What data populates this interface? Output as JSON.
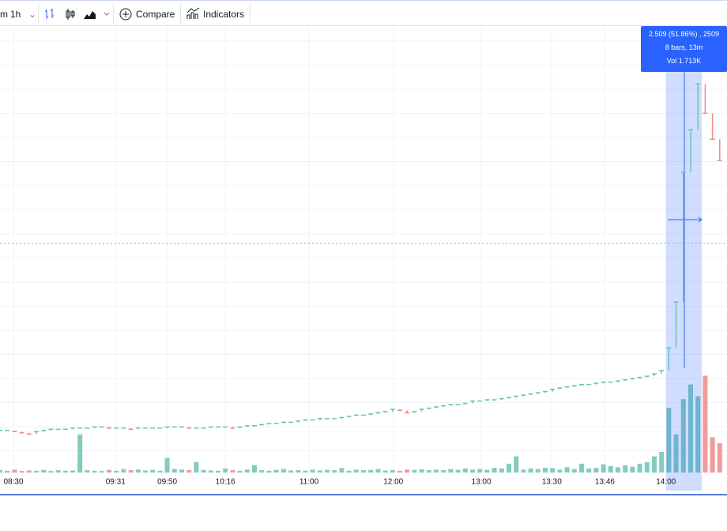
{
  "toolbar": {
    "interval_fragment": "m",
    "interval": "1h",
    "compare": "Compare",
    "indicators": "Indicators"
  },
  "chart_data": {
    "type": "ohlc",
    "xlim": [
      0,
      100
    ],
    "xticks": [
      {
        "value": 1.85,
        "label": "08:30"
      },
      {
        "value": 15.9,
        "label": "09:31"
      },
      {
        "value": 23,
        "label": "09:50"
      },
      {
        "value": 31,
        "label": "10:16"
      },
      {
        "value": 42.5,
        "label": "11:00"
      },
      {
        "value": 54.1,
        "label": "12:00"
      },
      {
        "value": 66.2,
        "label": "13:00"
      },
      {
        "value": 75.9,
        "label": "13:30"
      },
      {
        "value": 83.2,
        "label": "13:46"
      },
      {
        "value": 91.6,
        "label": "14:00"
      }
    ],
    "ylim": [
      3.94,
      7.74
    ],
    "y2lim": [
      0,
      700
    ],
    "up_color": "#6cc3b4",
    "down_color": "#ef8a8a",
    "series": [
      {
        "values": [
          4.31,
          4.31,
          4.3,
          4.29,
          4.28,
          4.3,
          4.31,
          4.32,
          4.32,
          4.32,
          4.33,
          4.33,
          4.33,
          4.34,
          4.34,
          4.33,
          4.33,
          4.33,
          4.32,
          4.33,
          4.33,
          4.33,
          4.33,
          4.34,
          4.34,
          4.34,
          4.33,
          4.33,
          4.33,
          4.34,
          4.34,
          4.34,
          4.33,
          4.34,
          4.35,
          4.35,
          4.36,
          4.37,
          4.37,
          4.38,
          4.38,
          4.39,
          4.4,
          4.4,
          4.41,
          4.41,
          4.41,
          4.42,
          4.43,
          4.44,
          4.44,
          4.45,
          4.46,
          4.47,
          4.49,
          4.48,
          4.46,
          4.47,
          4.49,
          4.5,
          4.51,
          4.52,
          4.53,
          4.53,
          4.54,
          4.56,
          4.56,
          4.57,
          4.57,
          4.58,
          4.59,
          4.6,
          4.61,
          4.62,
          4.63,
          4.64,
          4.66,
          4.67,
          4.68,
          4.69,
          4.7,
          4.7,
          4.71,
          4.72,
          4.72,
          4.73,
          4.74,
          4.75,
          4.76,
          4.77,
          4.79,
          4.82,
          5.01,
          5.4,
          6.5,
          6.86,
          7.25,
          7.0,
          6.78,
          6.6
        ]
      },
      {
        "axis": "y2",
        "values": [
          8,
          6,
          10,
          5,
          7,
          6,
          9,
          5,
          8,
          6,
          7,
          130,
          8,
          6,
          5,
          9,
          6,
          12,
          8,
          10,
          7,
          9,
          6,
          50,
          12,
          10,
          8,
          36,
          9,
          7,
          6,
          14,
          8,
          6,
          10,
          25,
          8,
          6,
          9,
          12,
          7,
          8,
          6,
          10,
          7,
          9,
          8,
          15,
          6,
          10,
          8,
          9,
          12,
          7,
          8,
          6,
          10,
          9,
          11,
          8,
          10,
          8,
          12,
          9,
          14,
          10,
          12,
          9,
          16,
          14,
          30,
          55,
          10,
          14,
          12,
          16,
          15,
          10,
          18,
          12,
          30,
          14,
          16,
          28,
          22,
          18,
          25,
          20,
          30,
          35,
          55,
          70,
          220,
          130,
          250,
          300,
          260,
          330,
          120,
          100
        ]
      }
    ]
  },
  "tooltip": {
    "line1": "2.509 (51.86%) , 2509",
    "line2": "8 bars, 13m",
    "line3": "Vol 1.713K"
  }
}
